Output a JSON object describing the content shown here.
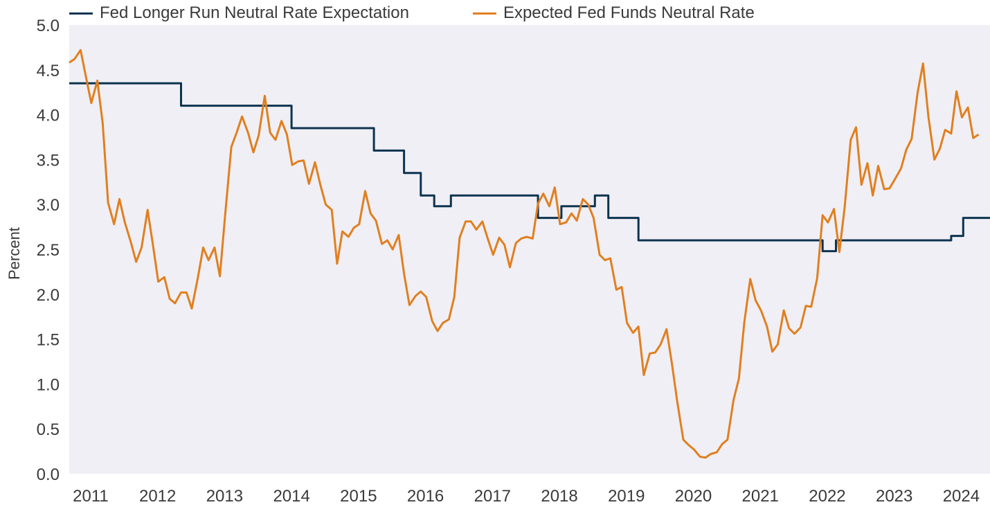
{
  "colors": {
    "fed_longer_run": "#0d3350",
    "expected_fed_funds": "#e07f1f",
    "plot_bg": "#f0eff5"
  },
  "chart_data": {
    "type": "line",
    "ylabel": "Percent",
    "ylim": [
      0,
      5
    ],
    "yticks": [
      "0.0",
      "0.5",
      "1.0",
      "1.5",
      "2.0",
      "2.5",
      "3.0",
      "3.5",
      "4.0",
      "4.5",
      "5.0"
    ],
    "xlim": [
      2010.75,
      2024.5
    ],
    "xticks": [
      {
        "x": 2011.07,
        "label": "2011"
      },
      {
        "x": 2012.07,
        "label": "2012"
      },
      {
        "x": 2013.07,
        "label": "2013"
      },
      {
        "x": 2014.07,
        "label": "2014"
      },
      {
        "x": 2015.07,
        "label": "2015"
      },
      {
        "x": 2016.07,
        "label": "2016"
      },
      {
        "x": 2017.07,
        "label": "2017"
      },
      {
        "x": 2018.07,
        "label": "2018"
      },
      {
        "x": 2019.07,
        "label": "2019"
      },
      {
        "x": 2020.07,
        "label": "2020"
      },
      {
        "x": 2021.07,
        "label": "2021"
      },
      {
        "x": 2022.07,
        "label": "2022"
      },
      {
        "x": 2023.07,
        "label": "2023"
      },
      {
        "x": 2024.07,
        "label": "2024"
      }
    ],
    "legend_position": "top",
    "series": [
      {
        "name": "Fed Longer Run Neutral Rate Expectation",
        "step": true,
        "points": [
          [
            2010.75,
            4.35
          ],
          [
            2012.42,
            4.35
          ],
          [
            2012.42,
            4.1
          ],
          [
            2014.07,
            4.1
          ],
          [
            2014.07,
            3.85
          ],
          [
            2015.3,
            3.85
          ],
          [
            2015.3,
            3.6
          ],
          [
            2015.75,
            3.6
          ],
          [
            2015.75,
            3.35
          ],
          [
            2016.0,
            3.35
          ],
          [
            2016.0,
            3.1
          ],
          [
            2016.2,
            3.1
          ],
          [
            2016.2,
            2.98
          ],
          [
            2016.45,
            2.98
          ],
          [
            2016.45,
            3.1
          ],
          [
            2017.75,
            3.1
          ],
          [
            2017.75,
            2.85
          ],
          [
            2018.1,
            2.85
          ],
          [
            2018.1,
            2.98
          ],
          [
            2018.6,
            2.98
          ],
          [
            2018.6,
            3.1
          ],
          [
            2018.8,
            3.1
          ],
          [
            2018.8,
            2.85
          ],
          [
            2019.25,
            2.85
          ],
          [
            2019.25,
            2.6
          ],
          [
            2022.0,
            2.6
          ],
          [
            2022.0,
            2.48
          ],
          [
            2022.2,
            2.48
          ],
          [
            2022.2,
            2.6
          ],
          [
            2023.92,
            2.6
          ],
          [
            2023.92,
            2.65
          ],
          [
            2024.1,
            2.65
          ],
          [
            2024.1,
            2.85
          ],
          [
            2024.5,
            2.85
          ]
        ]
      },
      {
        "name": "Expected Fed Funds Neutral Rate",
        "step": false,
        "points": [
          [
            2010.75,
            4.58
          ],
          [
            2010.83,
            4.62
          ],
          [
            2010.92,
            4.72
          ],
          [
            2011.0,
            4.42
          ],
          [
            2011.08,
            4.13
          ],
          [
            2011.17,
            4.38
          ],
          [
            2011.25,
            3.9
          ],
          [
            2011.33,
            3.02
          ],
          [
            2011.42,
            2.78
          ],
          [
            2011.5,
            3.06
          ],
          [
            2011.58,
            2.8
          ],
          [
            2011.67,
            2.58
          ],
          [
            2011.75,
            2.36
          ],
          [
            2011.83,
            2.52
          ],
          [
            2011.92,
            2.94
          ],
          [
            2012.0,
            2.55
          ],
          [
            2012.08,
            2.14
          ],
          [
            2012.17,
            2.19
          ],
          [
            2012.25,
            1.95
          ],
          [
            2012.33,
            1.9
          ],
          [
            2012.42,
            2.02
          ],
          [
            2012.5,
            2.02
          ],
          [
            2012.58,
            1.84
          ],
          [
            2012.67,
            2.18
          ],
          [
            2012.75,
            2.52
          ],
          [
            2012.83,
            2.38
          ],
          [
            2012.92,
            2.52
          ],
          [
            2013.0,
            2.2
          ],
          [
            2013.08,
            2.9
          ],
          [
            2013.17,
            3.64
          ],
          [
            2013.25,
            3.8
          ],
          [
            2013.33,
            3.98
          ],
          [
            2013.42,
            3.8
          ],
          [
            2013.5,
            3.58
          ],
          [
            2013.58,
            3.77
          ],
          [
            2013.67,
            4.21
          ],
          [
            2013.75,
            3.8
          ],
          [
            2013.83,
            3.72
          ],
          [
            2013.92,
            3.93
          ],
          [
            2014.0,
            3.78
          ],
          [
            2014.08,
            3.44
          ],
          [
            2014.17,
            3.48
          ],
          [
            2014.25,
            3.49
          ],
          [
            2014.33,
            3.23
          ],
          [
            2014.42,
            3.47
          ],
          [
            2014.5,
            3.22
          ],
          [
            2014.58,
            3.0
          ],
          [
            2014.67,
            2.94
          ],
          [
            2014.75,
            2.34
          ],
          [
            2014.83,
            2.7
          ],
          [
            2014.92,
            2.64
          ],
          [
            2015.0,
            2.74
          ],
          [
            2015.08,
            2.78
          ],
          [
            2015.17,
            3.15
          ],
          [
            2015.25,
            2.9
          ],
          [
            2015.33,
            2.82
          ],
          [
            2015.42,
            2.56
          ],
          [
            2015.5,
            2.6
          ],
          [
            2015.58,
            2.5
          ],
          [
            2015.67,
            2.66
          ],
          [
            2015.75,
            2.23
          ],
          [
            2015.83,
            1.88
          ],
          [
            2015.92,
            1.98
          ],
          [
            2016.0,
            2.03
          ],
          [
            2016.08,
            1.97
          ],
          [
            2016.17,
            1.7
          ],
          [
            2016.25,
            1.59
          ],
          [
            2016.33,
            1.68
          ],
          [
            2016.42,
            1.72
          ],
          [
            2016.5,
            1.97
          ],
          [
            2016.58,
            2.63
          ],
          [
            2016.67,
            2.81
          ],
          [
            2016.75,
            2.81
          ],
          [
            2016.83,
            2.72
          ],
          [
            2016.92,
            2.81
          ],
          [
            2017.0,
            2.62
          ],
          [
            2017.08,
            2.44
          ],
          [
            2017.17,
            2.63
          ],
          [
            2017.25,
            2.55
          ],
          [
            2017.33,
            2.3
          ],
          [
            2017.42,
            2.57
          ],
          [
            2017.5,
            2.62
          ],
          [
            2017.58,
            2.64
          ],
          [
            2017.67,
            2.62
          ],
          [
            2017.75,
            3.01
          ],
          [
            2017.83,
            3.12
          ],
          [
            2017.92,
            2.98
          ],
          [
            2018.0,
            3.19
          ],
          [
            2018.08,
            2.78
          ],
          [
            2018.17,
            2.8
          ],
          [
            2018.25,
            2.9
          ],
          [
            2018.33,
            2.82
          ],
          [
            2018.42,
            3.06
          ],
          [
            2018.5,
            3.0
          ],
          [
            2018.58,
            2.85
          ],
          [
            2018.67,
            2.44
          ],
          [
            2018.75,
            2.38
          ],
          [
            2018.83,
            2.4
          ],
          [
            2018.92,
            2.05
          ],
          [
            2019.0,
            2.08
          ],
          [
            2019.08,
            1.68
          ],
          [
            2019.17,
            1.57
          ],
          [
            2019.25,
            1.64
          ],
          [
            2019.33,
            1.1
          ],
          [
            2019.42,
            1.34
          ],
          [
            2019.5,
            1.35
          ],
          [
            2019.58,
            1.44
          ],
          [
            2019.67,
            1.61
          ],
          [
            2019.75,
            1.23
          ],
          [
            2019.83,
            0.8
          ],
          [
            2019.92,
            0.38
          ],
          [
            2020.0,
            0.32
          ],
          [
            2020.08,
            0.27
          ],
          [
            2020.17,
            0.19
          ],
          [
            2020.25,
            0.18
          ],
          [
            2020.33,
            0.22
          ],
          [
            2020.42,
            0.24
          ],
          [
            2020.5,
            0.33
          ],
          [
            2020.58,
            0.38
          ],
          [
            2020.67,
            0.82
          ],
          [
            2020.75,
            1.06
          ],
          [
            2020.83,
            1.68
          ],
          [
            2020.92,
            2.17
          ],
          [
            2021.0,
            1.93
          ],
          [
            2021.08,
            1.82
          ],
          [
            2021.17,
            1.64
          ],
          [
            2021.25,
            1.36
          ],
          [
            2021.33,
            1.44
          ],
          [
            2021.42,
            1.82
          ],
          [
            2021.5,
            1.62
          ],
          [
            2021.58,
            1.56
          ],
          [
            2021.67,
            1.63
          ],
          [
            2021.75,
            1.87
          ],
          [
            2021.83,
            1.86
          ],
          [
            2021.92,
            2.18
          ],
          [
            2022.0,
            2.88
          ],
          [
            2022.08,
            2.8
          ],
          [
            2022.17,
            2.95
          ],
          [
            2022.25,
            2.47
          ],
          [
            2022.33,
            2.97
          ],
          [
            2022.42,
            3.72
          ],
          [
            2022.5,
            3.86
          ],
          [
            2022.58,
            3.22
          ],
          [
            2022.67,
            3.46
          ],
          [
            2022.75,
            3.1
          ],
          [
            2022.83,
            3.43
          ],
          [
            2022.92,
            3.17
          ],
          [
            2023.0,
            3.18
          ],
          [
            2023.08,
            3.28
          ],
          [
            2023.17,
            3.4
          ],
          [
            2023.25,
            3.61
          ],
          [
            2023.33,
            3.73
          ],
          [
            2023.42,
            4.25
          ],
          [
            2023.5,
            4.57
          ],
          [
            2023.58,
            3.98
          ],
          [
            2023.67,
            3.5
          ],
          [
            2023.75,
            3.62
          ],
          [
            2023.83,
            3.83
          ],
          [
            2023.92,
            3.79
          ],
          [
            2024.0,
            4.26
          ],
          [
            2024.08,
            3.97
          ],
          [
            2024.17,
            4.08
          ],
          [
            2024.25,
            3.74
          ],
          [
            2024.33,
            3.78
          ]
        ]
      }
    ]
  }
}
